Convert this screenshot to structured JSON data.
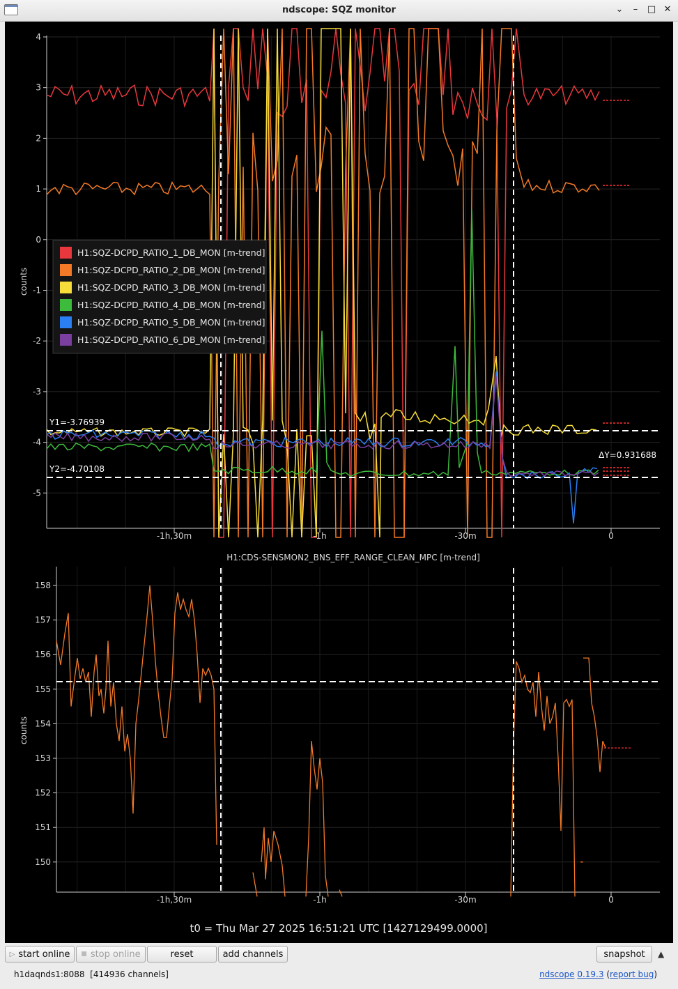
{
  "window": {
    "title": "ndscope: SQZ monitor",
    "controls": [
      "minimize",
      "maximize",
      "close"
    ]
  },
  "colors": {
    "ch1": "#e8383d",
    "ch2": "#f47a28",
    "ch3": "#f7dd3a",
    "ch4": "#3dbb3d",
    "ch5": "#2a7ff2",
    "ch6": "#7b3fa0",
    "range": "#f47a28",
    "cursor": "#ffffff",
    "pending": "#ff3030"
  },
  "top_plot": {
    "ylabel": "counts",
    "y_ticks": [
      "4",
      "3",
      "2",
      "1",
      "0",
      "-1",
      "-2",
      "-3",
      "-4",
      "-5"
    ],
    "x_ticks": [
      "-1h,30m",
      "-1h",
      "-30m",
      "0"
    ],
    "legend": [
      {
        "label": "H1:SQZ-DCPD_RATIO_1_DB_MON [m-trend]",
        "color": "#e8383d"
      },
      {
        "label": "H1:SQZ-DCPD_RATIO_2_DB_MON [m-trend]",
        "color": "#f47a28"
      },
      {
        "label": "H1:SQZ-DCPD_RATIO_3_DB_MON [m-trend]",
        "color": "#f7dd3a"
      },
      {
        "label": "H1:SQZ-DCPD_RATIO_4_DB_MON [m-trend]",
        "color": "#3dbb3d"
      },
      {
        "label": "H1:SQZ-DCPD_RATIO_5_DB_MON [m-trend]",
        "color": "#2a7ff2"
      },
      {
        "label": "H1:SQZ-DCPD_RATIO_6_DB_MON [m-trend]",
        "color": "#7b3fa0"
      }
    ],
    "cursor_y1": "Y1=-3.76939",
    "cursor_y2": "Y2=-4.70108",
    "cursor_dy": "ΔY=0.931688"
  },
  "bottom_plot": {
    "title": "H1:CDS-SENSMON2_BNS_EFF_RANGE_CLEAN_MPC [m-trend]",
    "ylabel": "counts",
    "y_ticks": [
      "158",
      "157",
      "156",
      "155",
      "154",
      "153",
      "152",
      "151",
      "150"
    ],
    "x_ticks": [
      "-1h,30m",
      "-1h",
      "-30m",
      "0"
    ]
  },
  "t0_label": "t0 = Thu Mar 27 2025 16:51:21 UTC [1427129499.0000]",
  "toolbar": {
    "start_online": "start online",
    "stop_online": "stop online",
    "reset": "reset",
    "add_channels": "add channels",
    "snapshot": "snapshot"
  },
  "status": {
    "server": "h1daqnds1:8088",
    "channels": "[414936 channels]",
    "app_name": "ndscope",
    "version": "0.19.3",
    "report_bug": "report bug"
  }
}
